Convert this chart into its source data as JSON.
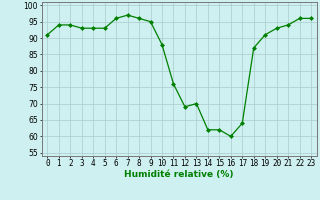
{
  "x": [
    0,
    1,
    2,
    3,
    4,
    5,
    6,
    7,
    8,
    9,
    10,
    11,
    12,
    13,
    14,
    15,
    16,
    17,
    18,
    19,
    20,
    21,
    22,
    23
  ],
  "y": [
    91,
    94,
    94,
    93,
    93,
    93,
    96,
    97,
    96,
    95,
    88,
    76,
    69,
    70,
    62,
    62,
    60,
    64,
    87,
    91,
    93,
    94,
    96,
    96
  ],
  "line_color": "#008000",
  "marker": "D",
  "marker_size": 2,
  "bg_color": "#cff0f0",
  "grid_color": "#aacccc",
  "xlabel": "Humidité relative (%)",
  "xlabel_color": "#008000",
  "ylabel_ticks": [
    55,
    60,
    65,
    70,
    75,
    80,
    85,
    90,
    95,
    100
  ],
  "xlim": [
    -0.5,
    23.5
  ],
  "ylim": [
    54,
    101
  ],
  "xtick_labels": [
    "0",
    "1",
    "2",
    "3",
    "4",
    "5",
    "6",
    "7",
    "8",
    "9",
    "10",
    "11",
    "12",
    "13",
    "14",
    "15",
    "16",
    "17",
    "18",
    "19",
    "20",
    "21",
    "22",
    "23"
  ],
  "label_fontsize": 6.5,
  "tick_fontsize": 5.5
}
